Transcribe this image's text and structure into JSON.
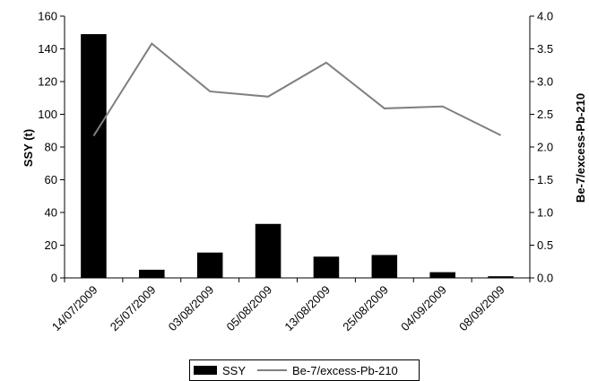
{
  "chart_data": {
    "type": "bar",
    "categories": [
      "14/07/2009",
      "25/07/2009",
      "03/08/2009",
      "05/08/2009",
      "13/08/2009",
      "25/08/2009",
      "04/09/2009",
      "08/09/2009"
    ],
    "series": [
      {
        "name": "SSY",
        "type": "bar",
        "axis": "left",
        "color": "#000000",
        "values": [
          149,
          5,
          15.5,
          33,
          13,
          14,
          3.5,
          1
        ]
      },
      {
        "name": "Be-7/excess-Pb-210",
        "type": "line",
        "axis": "right",
        "color": "#808080",
        "values": [
          2.17,
          3.58,
          2.85,
          2.77,
          3.29,
          2.59,
          2.62,
          2.18
        ]
      }
    ],
    "title": "",
    "xlabel": "",
    "ylabel": "SSY (t)",
    "ylabel_right": "Be-7/excess-Pb-210",
    "ylim": [
      0,
      160
    ],
    "ylim_right": [
      0,
      4.0
    ],
    "yticks": [
      0,
      20,
      40,
      60,
      80,
      100,
      120,
      140,
      160
    ],
    "yticks_right": [
      "0.0",
      "0.5",
      "1.0",
      "1.5",
      "2.0",
      "2.5",
      "3.0",
      "3.5",
      "4.0"
    ],
    "grid": false,
    "legend_position": "bottom"
  }
}
